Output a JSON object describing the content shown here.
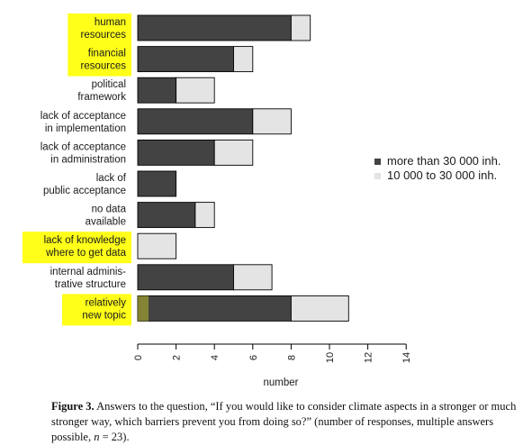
{
  "chart_data": {
    "type": "bar",
    "orientation": "horizontal",
    "stacked": true,
    "categories": [
      [
        "human",
        "resources"
      ],
      [
        "financial",
        "resources"
      ],
      [
        "political",
        "framework"
      ],
      [
        "lack of acceptance",
        "in implementation"
      ],
      [
        "lack of acceptance",
        "in administration"
      ],
      [
        "lack of",
        "public acceptance"
      ],
      [
        "no data",
        "available"
      ],
      [
        "lack of knowledge",
        "where to get data"
      ],
      [
        "internal adminis-",
        "trative structure"
      ],
      [
        "relatively",
        "new topic"
      ]
    ],
    "highlighted": [
      true,
      true,
      false,
      false,
      false,
      false,
      false,
      true,
      false,
      true
    ],
    "series": [
      {
        "name": "more than 30 000 inh.",
        "color": "#434343",
        "values": [
          8,
          5,
          2,
          6,
          4,
          2,
          3,
          0,
          5,
          8
        ]
      },
      {
        "name": "10 000 to 30 000 inh.",
        "color": "#e4e4e4",
        "values": [
          1,
          1,
          2,
          2,
          2,
          0,
          1,
          2,
          2,
          3
        ]
      }
    ],
    "xlabel": "number",
    "xlim": [
      0,
      14
    ],
    "xticks": [
      0,
      2,
      4,
      6,
      8,
      10,
      12,
      14
    ],
    "legend_position": "right",
    "highlight_color": "#ffff1a"
  },
  "caption": {
    "label": "Figure 3.",
    "text": "Answers to the question, “If you would like to consider climate aspects in a stronger or much stronger way, which barriers prevent you from doing so?” (number of responses, multiple answers possible, ",
    "n_symbol": "n",
    "n_value": " = 23)."
  }
}
